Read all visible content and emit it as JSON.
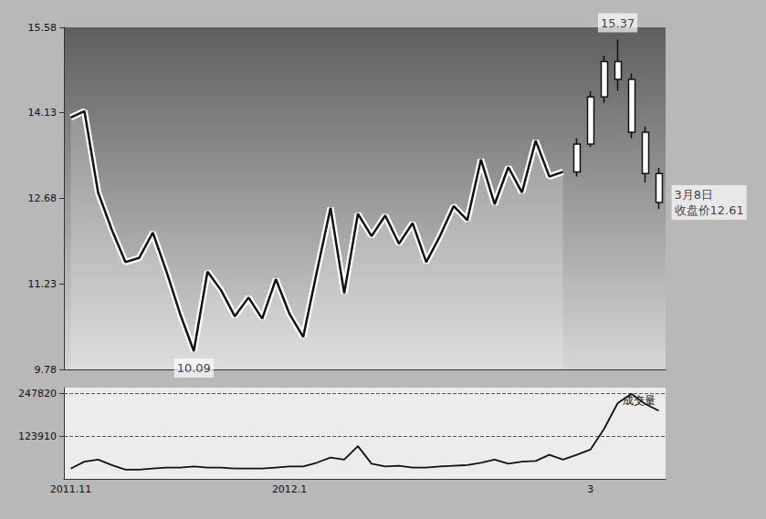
{
  "chart_data": [
    {
      "type": "line",
      "categories": [
        "2011.11",
        null,
        null,
        null,
        null,
        null,
        null,
        null,
        null,
        null,
        null,
        null,
        null,
        null,
        null,
        null,
        "2012.1",
        null,
        null,
        null,
        null,
        null,
        null,
        null,
        null,
        null,
        null,
        null,
        null,
        null,
        null,
        null,
        null,
        null,
        null,
        null,
        null,
        null,
        "3",
        null,
        null,
        null,
        null,
        null
      ],
      "ylim": [
        9.78,
        15.58
      ],
      "yticks": [
        9.78,
        11.23,
        12.68,
        14.13,
        15.58
      ],
      "grid": false,
      "tick_labels": "y",
      "series": [
        {
          "type": "line",
          "color": "#111111",
          "values": [
            14.05,
            14.16,
            12.78,
            12.15,
            11.6,
            11.67,
            12.1,
            11.44,
            10.72,
            10.09,
            11.44,
            11.12,
            10.68,
            11.0,
            10.64,
            11.31,
            10.72,
            10.33,
            11.44,
            12.52,
            11.07,
            12.42,
            12.04,
            12.39,
            11.91,
            12.26,
            11.6,
            12.04,
            12.55,
            12.31,
            13.34,
            12.58,
            13.21,
            12.78,
            13.66,
            13.05,
            13.13,
            null,
            null,
            null,
            null,
            null,
            null,
            null
          ]
        },
        {
          "type": "candlestick",
          "color": "#ffffff",
          "values": [
            null,
            null,
            null,
            null,
            null,
            null,
            null,
            null,
            null,
            null,
            null,
            null,
            null,
            null,
            null,
            null,
            null,
            null,
            null,
            null,
            null,
            null,
            null,
            null,
            null,
            null,
            null,
            null,
            null,
            null,
            null,
            null,
            null,
            null,
            null,
            null,
            null,
            [
              13.13,
              13.6,
              13.05,
              13.7
            ],
            [
              13.6,
              14.4,
              13.55,
              14.5
            ],
            [
              14.4,
              15.0,
              14.3,
              15.1
            ],
            [
              15.0,
              14.7,
              14.5,
              15.37
            ],
            [
              14.7,
              13.8,
              13.7,
              14.8
            ],
            [
              13.8,
              13.1,
              12.95,
              13.9
            ],
            [
              13.1,
              12.61,
              12.5,
              13.2
            ]
          ]
        }
      ],
      "annotations": [
        {
          "text": "10.09",
          "x": 9,
          "y": 10.09
        },
        {
          "text": "15.37",
          "x": 40,
          "y": 15.37
        },
        {
          "text": "3月8日\n收盘价12.61",
          "x": 43,
          "y": 12.61
        }
      ]
    },
    {
      "type": "line",
      "title": "成交量",
      "categories": [
        "2011.11",
        null,
        null,
        null,
        null,
        null,
        null,
        null,
        null,
        null,
        null,
        null,
        null,
        null,
        null,
        null,
        "2012.1",
        null,
        null,
        null,
        null,
        null,
        null,
        null,
        null,
        null,
        null,
        null,
        null,
        null,
        null,
        null,
        null,
        null,
        null,
        null,
        null,
        null,
        "3",
        null,
        null,
        null,
        null,
        null
      ],
      "ylim": [
        0,
        265000
      ],
      "yticks": [
        123910,
        247820
      ],
      "grid": true,
      "color": "#111111",
      "values": [
        30000,
        50000,
        56000,
        40000,
        27000,
        27000,
        30000,
        33000,
        33000,
        36000,
        33000,
        33000,
        30000,
        30000,
        30000,
        33000,
        36000,
        36000,
        47000,
        62000,
        56000,
        95000,
        44000,
        36000,
        38000,
        33000,
        33000,
        36000,
        38000,
        40000,
        47000,
        56000,
        44000,
        50000,
        52000,
        70000,
        56000,
        70000,
        85000,
        145000,
        220000,
        247000,
        218000,
        198000
      ]
    }
  ]
}
